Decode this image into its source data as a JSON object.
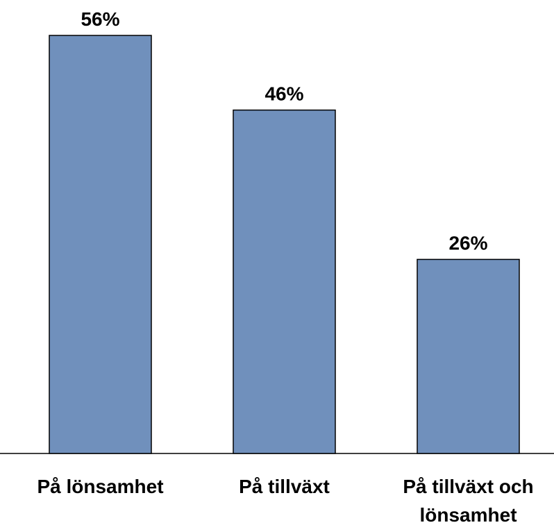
{
  "chart_data": {
    "type": "bar",
    "categories": [
      "På lönsamhet",
      "På tillväxt",
      "På tillväxt och lönsamhet"
    ],
    "values": [
      56,
      46,
      26
    ],
    "value_labels": [
      "56%",
      "46%",
      "26%"
    ],
    "color": "#7090bc"
  }
}
